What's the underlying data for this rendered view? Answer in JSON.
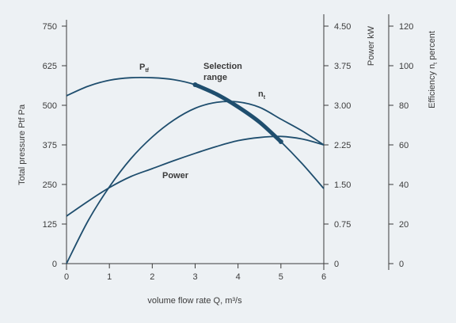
{
  "chart_data": {
    "type": "line",
    "xlabel": "volume flow rate Q, m³/s",
    "x_ticks": [
      "0",
      "1",
      "2",
      "3",
      "4",
      "5",
      "6"
    ],
    "xlim": [
      0,
      6
    ],
    "axes": {
      "pressure": {
        "label": "Total pressure Ptf Pa",
        "ticks": [
          "0",
          "125",
          "250",
          "375",
          "500",
          "625",
          "750"
        ],
        "ylim": [
          0,
          750
        ]
      },
      "power": {
        "label": "Power kW",
        "ticks": [
          "0",
          "0.75",
          "1.50",
          "2.25",
          "3.00",
          "3.75",
          "4.50"
        ],
        "ylim": [
          0,
          4.5
        ]
      },
      "efficiency": {
        "label": "Efficiency ηt percent",
        "label_main": "Efficiency n",
        "label_sub": "t",
        "label_tail": " percent",
        "ticks": [
          "0",
          "20",
          "40",
          "60",
          "80",
          "100",
          "120"
        ],
        "ylim": [
          0,
          120
        ]
      }
    },
    "series": [
      {
        "name": "Ptf",
        "label_main": "P",
        "label_sub": "tf",
        "axis": "pressure",
        "x": [
          0,
          0.5,
          1,
          1.5,
          2,
          2.5,
          3,
          3.5,
          4,
          4.5,
          5,
          5.5,
          6
        ],
        "y": [
          530,
          560,
          579,
          587,
          587,
          581,
          565,
          535,
          495,
          447,
          385,
          315,
          237
        ]
      },
      {
        "name": "Power",
        "axis": "power",
        "x": [
          0,
          0.5,
          1,
          1.5,
          2,
          2.5,
          3,
          3.5,
          4,
          4.5,
          5,
          5.5,
          6
        ],
        "y": [
          0.9,
          1.18,
          1.44,
          1.65,
          1.8,
          1.95,
          2.09,
          2.22,
          2.33,
          2.39,
          2.41,
          2.36,
          2.25
        ]
      },
      {
        "name": "nt",
        "label_main": "n",
        "label_sub": "t",
        "axis": "efficiency",
        "x": [
          0,
          0.5,
          1,
          1.5,
          2,
          2.5,
          3,
          3.5,
          4,
          4.5,
          5,
          5.5,
          6
        ],
        "y": [
          0,
          21.5,
          38.8,
          53,
          64,
          72.5,
          78.5,
          81.5,
          81.7,
          79,
          73,
          67,
          60
        ]
      }
    ],
    "annotations": {
      "selection_label_1": "Selection",
      "selection_label_2": "range",
      "selection_range_x": [
        3,
        5
      ],
      "selection_on": "Ptf"
    },
    "grid": false,
    "colors": {
      "line": "#1f4e6e",
      "axis": "#3b3b3b",
      "background": "#edf1f4"
    }
  }
}
